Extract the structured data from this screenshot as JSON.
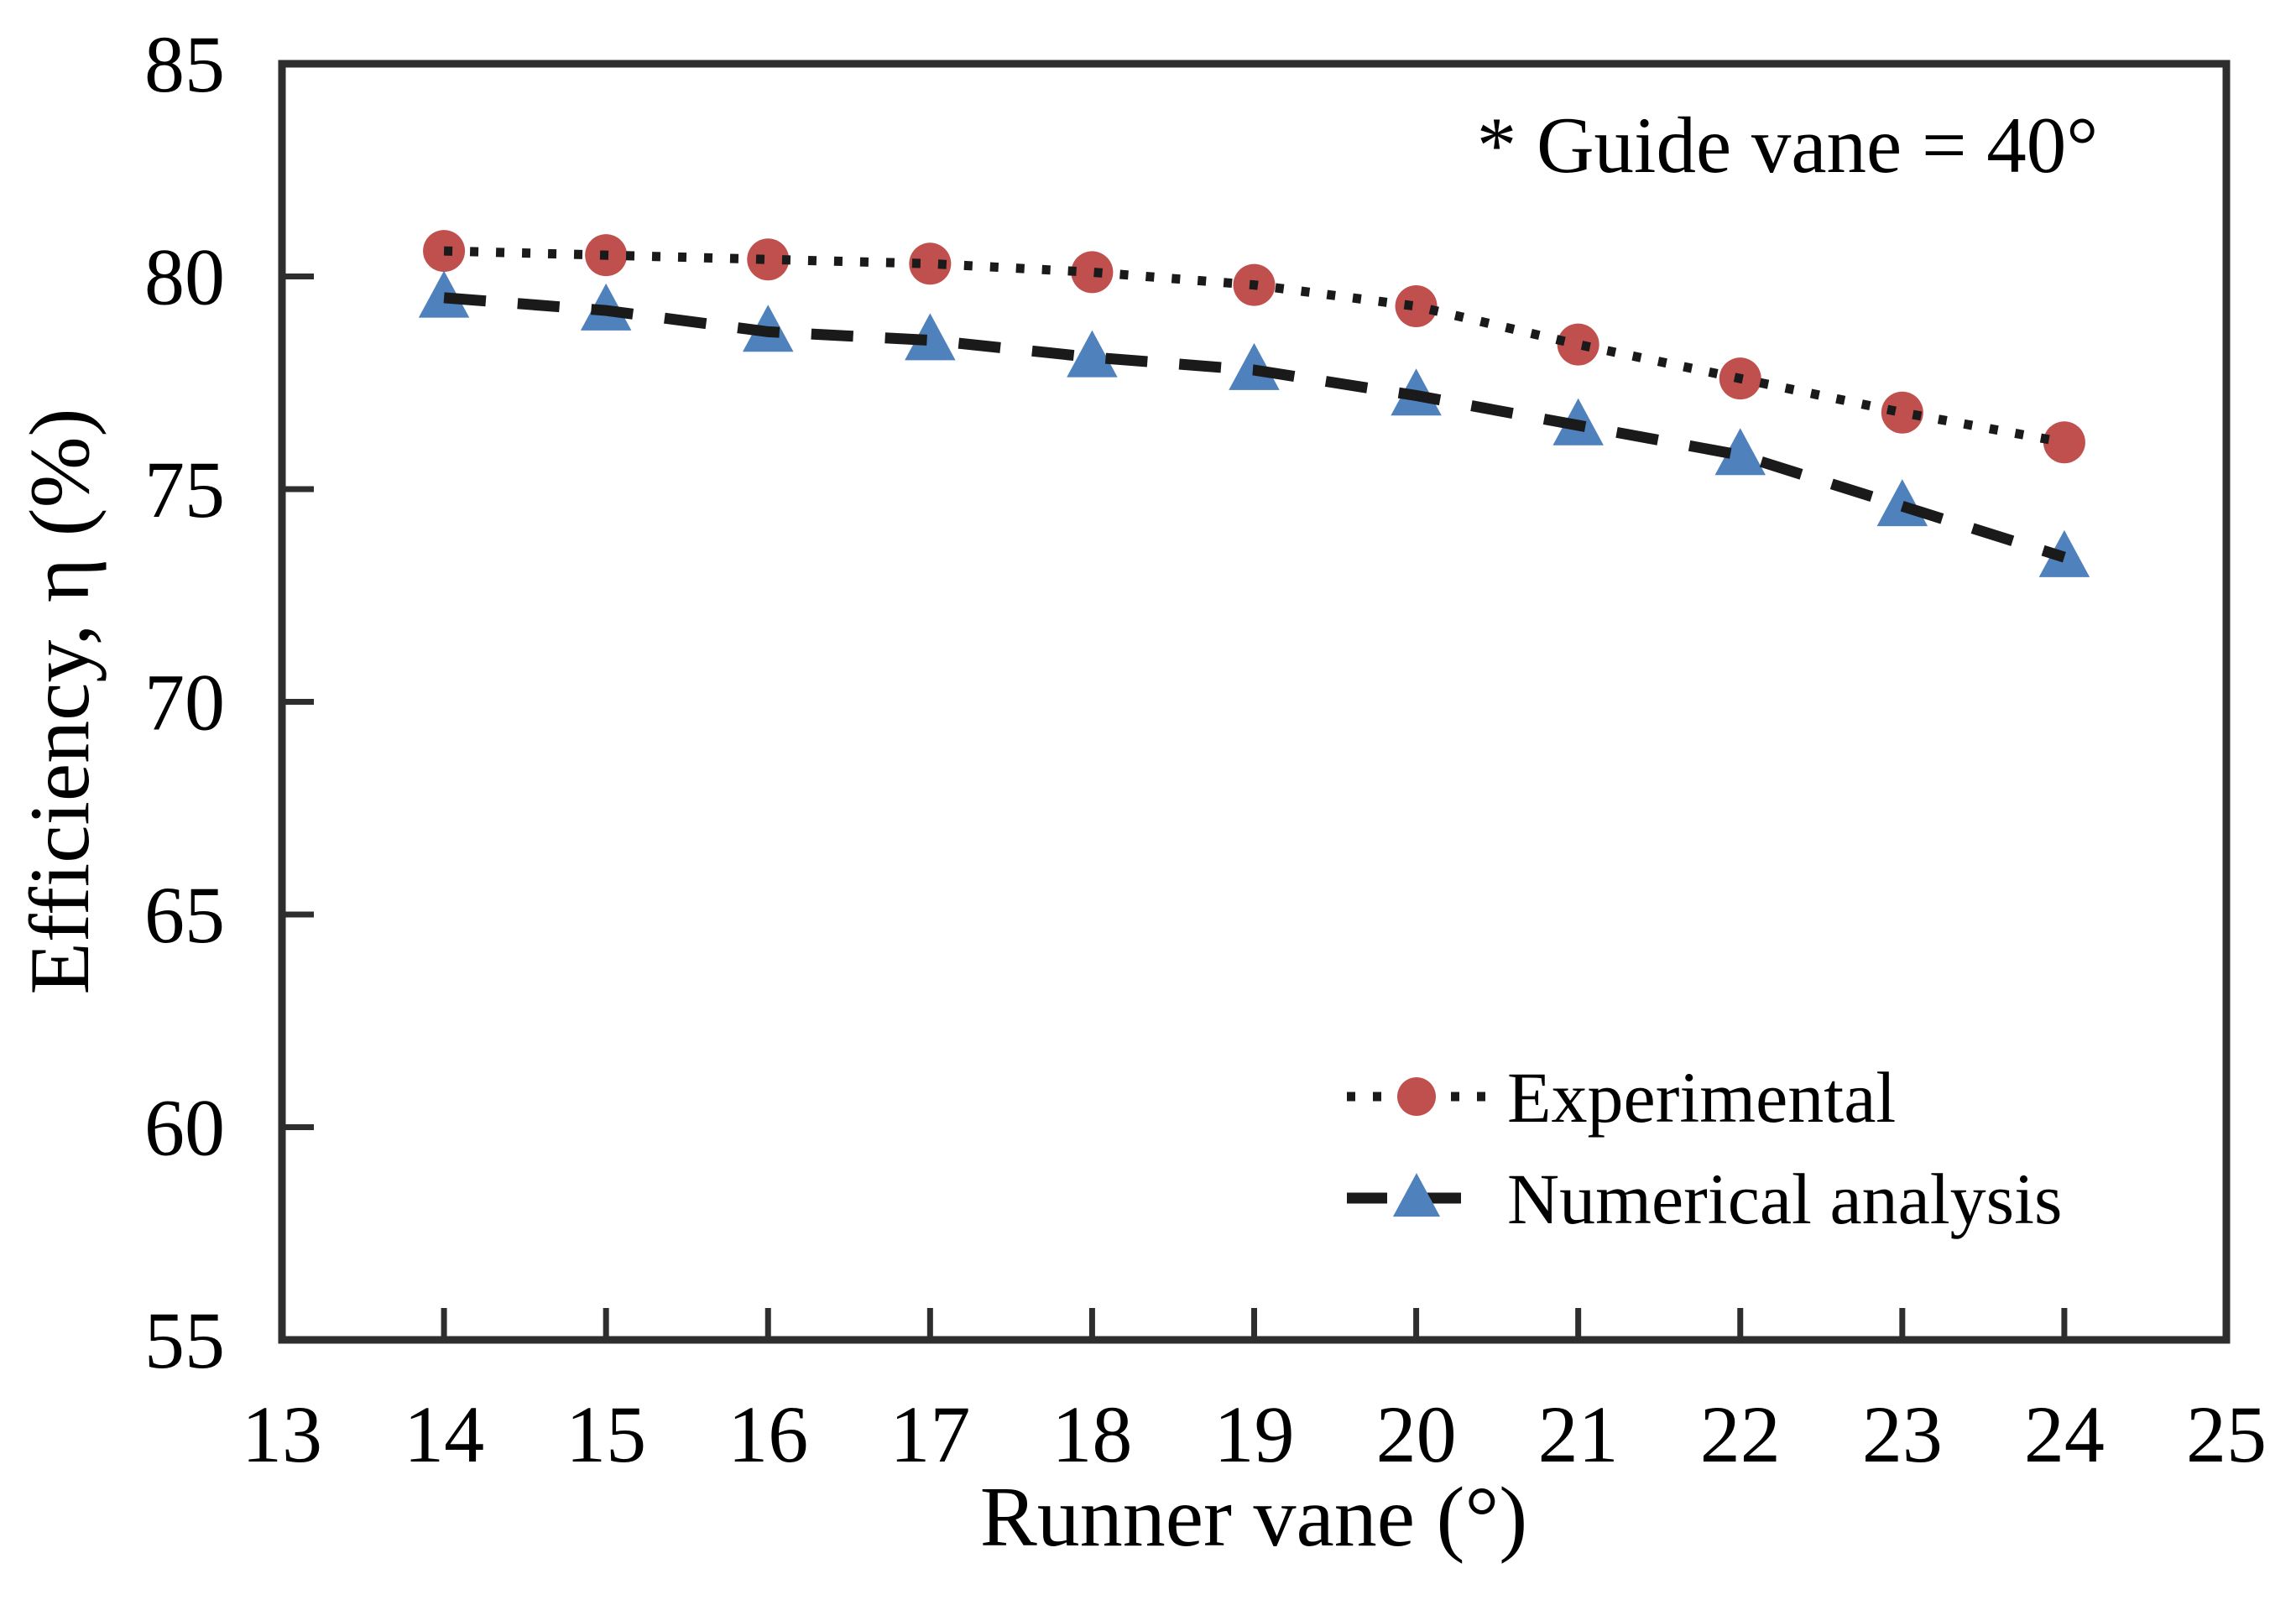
{
  "page": {
    "background": "#ffffff"
  },
  "chart_data": {
    "type": "line",
    "title": "",
    "annotation": "* Guide vane = 40°",
    "xlabel": "Runner vane (°)",
    "ylabel": "Efficiency, η (%)",
    "xlim": [
      13,
      25
    ],
    "ylim": [
      55,
      85
    ],
    "x_ticks": [
      13,
      14,
      15,
      16,
      17,
      18,
      19,
      20,
      21,
      22,
      23,
      24,
      25
    ],
    "y_ticks": [
      55,
      60,
      65,
      70,
      75,
      80,
      85
    ],
    "grid": false,
    "legend_position": "lower right",
    "x": [
      14,
      15,
      16,
      17,
      18,
      19,
      20,
      21,
      22,
      23,
      24
    ],
    "series": [
      {
        "name": "Experimental",
        "marker": "circle",
        "marker_color": "#c0504d",
        "line_color": "#1a1a1a",
        "line_style": "dotted",
        "values": [
          80.6,
          80.5,
          80.4,
          80.3,
          80.1,
          79.8,
          79.3,
          78.4,
          77.6,
          76.8,
          76.1
        ]
      },
      {
        "name": "Numerical analysis",
        "marker": "triangle",
        "marker_color": "#4f81bd",
        "line_color": "#1a1a1a",
        "line_style": "dashed",
        "values": [
          79.5,
          79.2,
          78.7,
          78.5,
          78.1,
          77.8,
          77.2,
          76.5,
          75.8,
          74.6,
          73.4
        ]
      }
    ],
    "axis_color": "#2e2e2e"
  }
}
